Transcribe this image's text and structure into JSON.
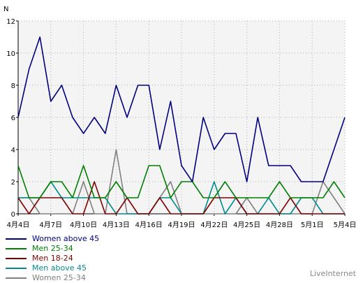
{
  "chart_data": {
    "type": "line",
    "ylabel": "N",
    "ylim": [
      0,
      12
    ],
    "yticks": [
      0,
      2,
      4,
      6,
      8,
      10,
      12
    ],
    "grid": true,
    "legend_position": "bottom-left",
    "x": [
      "4月4日",
      "4月5日",
      "4月6日",
      "4月7日",
      "4月8日",
      "4月9日",
      "4月10日",
      "4月11日",
      "4月12日",
      "4月13日",
      "4月14日",
      "4月15日",
      "4月16日",
      "4月17日",
      "4月18日",
      "4月19日",
      "4月20日",
      "4月21日",
      "4月22日",
      "4月23日",
      "4月24日",
      "4月25日",
      "4月26日",
      "4月27日",
      "4月28日",
      "4月29日",
      "4月30日",
      "5月1日",
      "5月2日",
      "5月3日",
      "5月4日"
    ],
    "xtick_labels": [
      "4月4日",
      "4月7日",
      "4月10日",
      "4月13日",
      "4月16日",
      "4月19日",
      "4月22日",
      "4月25日",
      "4月28日",
      "5月1日",
      "5月4日"
    ],
    "series": [
      {
        "name": "Women above 45",
        "color": "#000080",
        "values": [
          6,
          9,
          11,
          7,
          8,
          6,
          5,
          6,
          5,
          8,
          6,
          8,
          8,
          4,
          7,
          3,
          2,
          6,
          4,
          5,
          5,
          2,
          6,
          3,
          3,
          3,
          2,
          2,
          2,
          4,
          6
        ]
      },
      {
        "name": "Men 25-34",
        "color": "#008000",
        "values": [
          3,
          1,
          1,
          2,
          2,
          1,
          3,
          1,
          1,
          2,
          1,
          1,
          3,
          3,
          1,
          2,
          2,
          1,
          1,
          2,
          1,
          1,
          1,
          1,
          2,
          1,
          1,
          1,
          1,
          2,
          1
        ]
      },
      {
        "name": "Men 18-24",
        "color": "#800000",
        "values": [
          1,
          0,
          1,
          1,
          1,
          0,
          0,
          2,
          0,
          0,
          1,
          0,
          0,
          1,
          0,
          0,
          0,
          0,
          1,
          1,
          1,
          0,
          0,
          0,
          0,
          1,
          0,
          0,
          0,
          0,
          0
        ]
      },
      {
        "name": "Men above 45",
        "color": "#008b8b",
        "values": [
          1,
          1,
          1,
          2,
          1,
          1,
          1,
          1,
          1,
          0,
          0,
          0,
          0,
          1,
          1,
          0,
          0,
          0,
          2,
          0,
          1,
          0,
          0,
          1,
          0,
          0,
          1,
          1,
          0,
          0,
          0
        ]
      },
      {
        "name": "Women 25-34",
        "color": "#808080",
        "values": [
          1,
          1,
          0,
          0,
          0,
          0,
          2,
          0,
          0,
          4,
          0,
          0,
          0,
          1,
          2,
          0,
          0,
          0,
          0,
          0,
          0,
          1,
          0,
          0,
          0,
          0,
          0,
          0,
          2,
          1,
          0
        ]
      }
    ]
  },
  "brand": "LiveInternet"
}
